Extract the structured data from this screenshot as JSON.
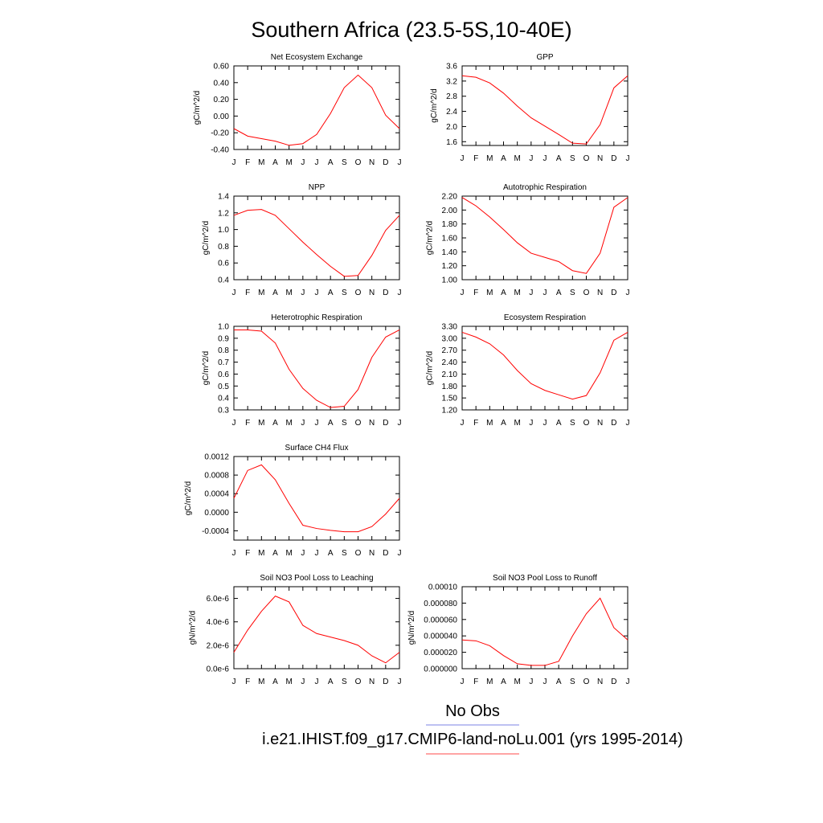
{
  "figure": {
    "title": "Southern Africa (23.5-5S,10-40E)",
    "month_labels": [
      "J",
      "F",
      "M",
      "A",
      "M",
      "J",
      "J",
      "A",
      "S",
      "O",
      "N",
      "D",
      "J"
    ],
    "legend": [
      {
        "label": "No Obs",
        "color": "#7b83e6"
      },
      {
        "label": "i.e21.IHIST.f09_g17.CMIP6-land-noLu.001 (yrs 1995-2014)",
        "color": "#ff4a4a"
      }
    ]
  },
  "chart_data": [
    {
      "type": "line",
      "title": "Net Ecosystem Exchange",
      "ylabel": "gC/m^2/d",
      "ylim": [
        -0.4,
        0.6
      ],
      "yticks": [
        -0.4,
        -0.2,
        0.0,
        0.2,
        0.4,
        0.6
      ],
      "ytick_labels": [
        "-0.40",
        "-0.20",
        "0.00",
        "0.20",
        "0.40",
        "0.60"
      ],
      "series": [
        {
          "color": "#ff0000",
          "values": [
            -0.15,
            -0.24,
            -0.27,
            -0.3,
            -0.35,
            -0.33,
            -0.22,
            0.03,
            0.34,
            0.49,
            0.34,
            0.01,
            -0.15
          ]
        }
      ]
    },
    {
      "type": "line",
      "title": "GPP",
      "ylabel": "gC/m^2/d",
      "ylim": [
        1.5,
        3.6
      ],
      "yticks": [
        1.6,
        2.0,
        2.4,
        2.8,
        3.2,
        3.6
      ],
      "ytick_labels": [
        "1.6",
        "2.0",
        "2.4",
        "2.8",
        "3.2",
        "3.6"
      ],
      "series": [
        {
          "color": "#ff0000",
          "values": [
            3.34,
            3.3,
            3.15,
            2.88,
            2.54,
            2.23,
            2.01,
            1.79,
            1.56,
            1.54,
            2.05,
            3.02,
            3.34
          ]
        }
      ]
    },
    {
      "type": "line",
      "title": "NPP",
      "ylabel": "gC/m^2/d",
      "ylim": [
        0.4,
        1.4
      ],
      "yticks": [
        0.4,
        0.6,
        0.8,
        1.0,
        1.2,
        1.4
      ],
      "ytick_labels": [
        "0.4",
        "0.6",
        "0.8",
        "1.0",
        "1.2",
        "1.4"
      ],
      "series": [
        {
          "color": "#ff0000",
          "values": [
            1.17,
            1.23,
            1.24,
            1.17,
            1.01,
            0.85,
            0.7,
            0.56,
            0.44,
            0.45,
            0.69,
            0.99,
            1.17
          ]
        }
      ]
    },
    {
      "type": "line",
      "title": "Autotrophic Respiration",
      "ylabel": "gC/m^2/d",
      "ylim": [
        1.0,
        2.2
      ],
      "yticks": [
        1.0,
        1.2,
        1.4,
        1.6,
        1.8,
        2.0,
        2.2
      ],
      "ytick_labels": [
        "1.00",
        "1.20",
        "1.40",
        "1.60",
        "1.80",
        "2.00",
        "2.20"
      ],
      "series": [
        {
          "color": "#ff0000",
          "values": [
            2.18,
            2.06,
            1.9,
            1.72,
            1.53,
            1.38,
            1.32,
            1.26,
            1.13,
            1.09,
            1.38,
            2.04,
            2.18
          ]
        }
      ]
    },
    {
      "type": "line",
      "title": "Heterotrophic Respiration",
      "ylabel": "gC/m^2/d",
      "ylim": [
        0.3,
        1.0
      ],
      "yticks": [
        0.3,
        0.4,
        0.5,
        0.6,
        0.7,
        0.8,
        0.9,
        1.0
      ],
      "ytick_labels": [
        "0.3",
        "0.4",
        "0.5",
        "0.6",
        "0.7",
        "0.8",
        "0.9",
        "1.0"
      ],
      "series": [
        {
          "color": "#ff0000",
          "values": [
            0.97,
            0.97,
            0.96,
            0.86,
            0.64,
            0.48,
            0.38,
            0.32,
            0.33,
            0.47,
            0.74,
            0.91,
            0.97
          ]
        }
      ]
    },
    {
      "type": "line",
      "title": "Ecosystem Respiration",
      "ylabel": "gC/m^2/d",
      "ylim": [
        1.2,
        3.3
      ],
      "yticks": [
        1.2,
        1.5,
        1.8,
        2.1,
        2.4,
        2.7,
        3.0,
        3.3
      ],
      "ytick_labels": [
        "1.20",
        "1.50",
        "1.80",
        "2.10",
        "2.40",
        "2.70",
        "3.00",
        "3.30"
      ],
      "series": [
        {
          "color": "#ff0000",
          "values": [
            3.15,
            3.03,
            2.86,
            2.58,
            2.19,
            1.86,
            1.69,
            1.58,
            1.47,
            1.56,
            2.13,
            2.95,
            3.15
          ]
        }
      ]
    },
    {
      "type": "line",
      "title": "Surface CH4 Flux",
      "ylabel": "gC/m^2/d",
      "ylim": [
        -0.0006,
        0.0012
      ],
      "yticks": [
        -0.0004,
        0.0,
        0.0004,
        0.0008,
        0.0012
      ],
      "ytick_labels": [
        "-0.0004",
        "0.0000",
        "0.0004",
        "0.0008",
        "0.0012"
      ],
      "series": [
        {
          "color": "#ff0000",
          "values": [
            0.0003,
            0.0009,
            0.00102,
            0.0007,
            0.00019,
            -0.00028,
            -0.00035,
            -0.00039,
            -0.00042,
            -0.00042,
            -0.00031,
            -4e-05,
            0.0003
          ]
        }
      ]
    },
    {
      "type": "line",
      "title": "Soil NO3 Pool Loss to Leaching",
      "ylabel": "gN/m^2/d",
      "ylim": [
        0.0,
        7e-06
      ],
      "yticks": [
        0.0,
        2e-06,
        4e-06,
        6e-06
      ],
      "ytick_labels": [
        "0.0e-6",
        "2.0e-6",
        "4.0e-6",
        "6.0e-6"
      ],
      "series": [
        {
          "color": "#ff0000",
          "values": [
            1.4e-06,
            3.3e-06,
            4.9e-06,
            6.2e-06,
            5.7e-06,
            3.7e-06,
            3e-06,
            2.7e-06,
            2.4e-06,
            2e-06,
            1.1e-06,
            5e-07,
            1.4e-06
          ]
        }
      ]
    },
    {
      "type": "line",
      "title": "Soil NO3 Pool Loss to Runoff",
      "ylabel": "gN/m^2/d",
      "ylim": [
        0.0,
        0.0001
      ],
      "yticks": [
        0.0,
        2e-05,
        4e-05,
        6e-05,
        8e-05,
        0.0001
      ],
      "ytick_labels": [
        "0.000000",
        "0.000020",
        "0.000040",
        "0.000060",
        "0.000080",
        "0.00010"
      ],
      "series": [
        {
          "color": "#ff0000",
          "values": [
            3.5e-05,
            3.4e-05,
            2.8e-05,
            1.6e-05,
            6e-06,
            4e-06,
            4e-06,
            9e-06,
            4e-05,
            6.7e-05,
            8.6e-05,
            5e-05,
            3.5e-05
          ]
        }
      ]
    }
  ]
}
